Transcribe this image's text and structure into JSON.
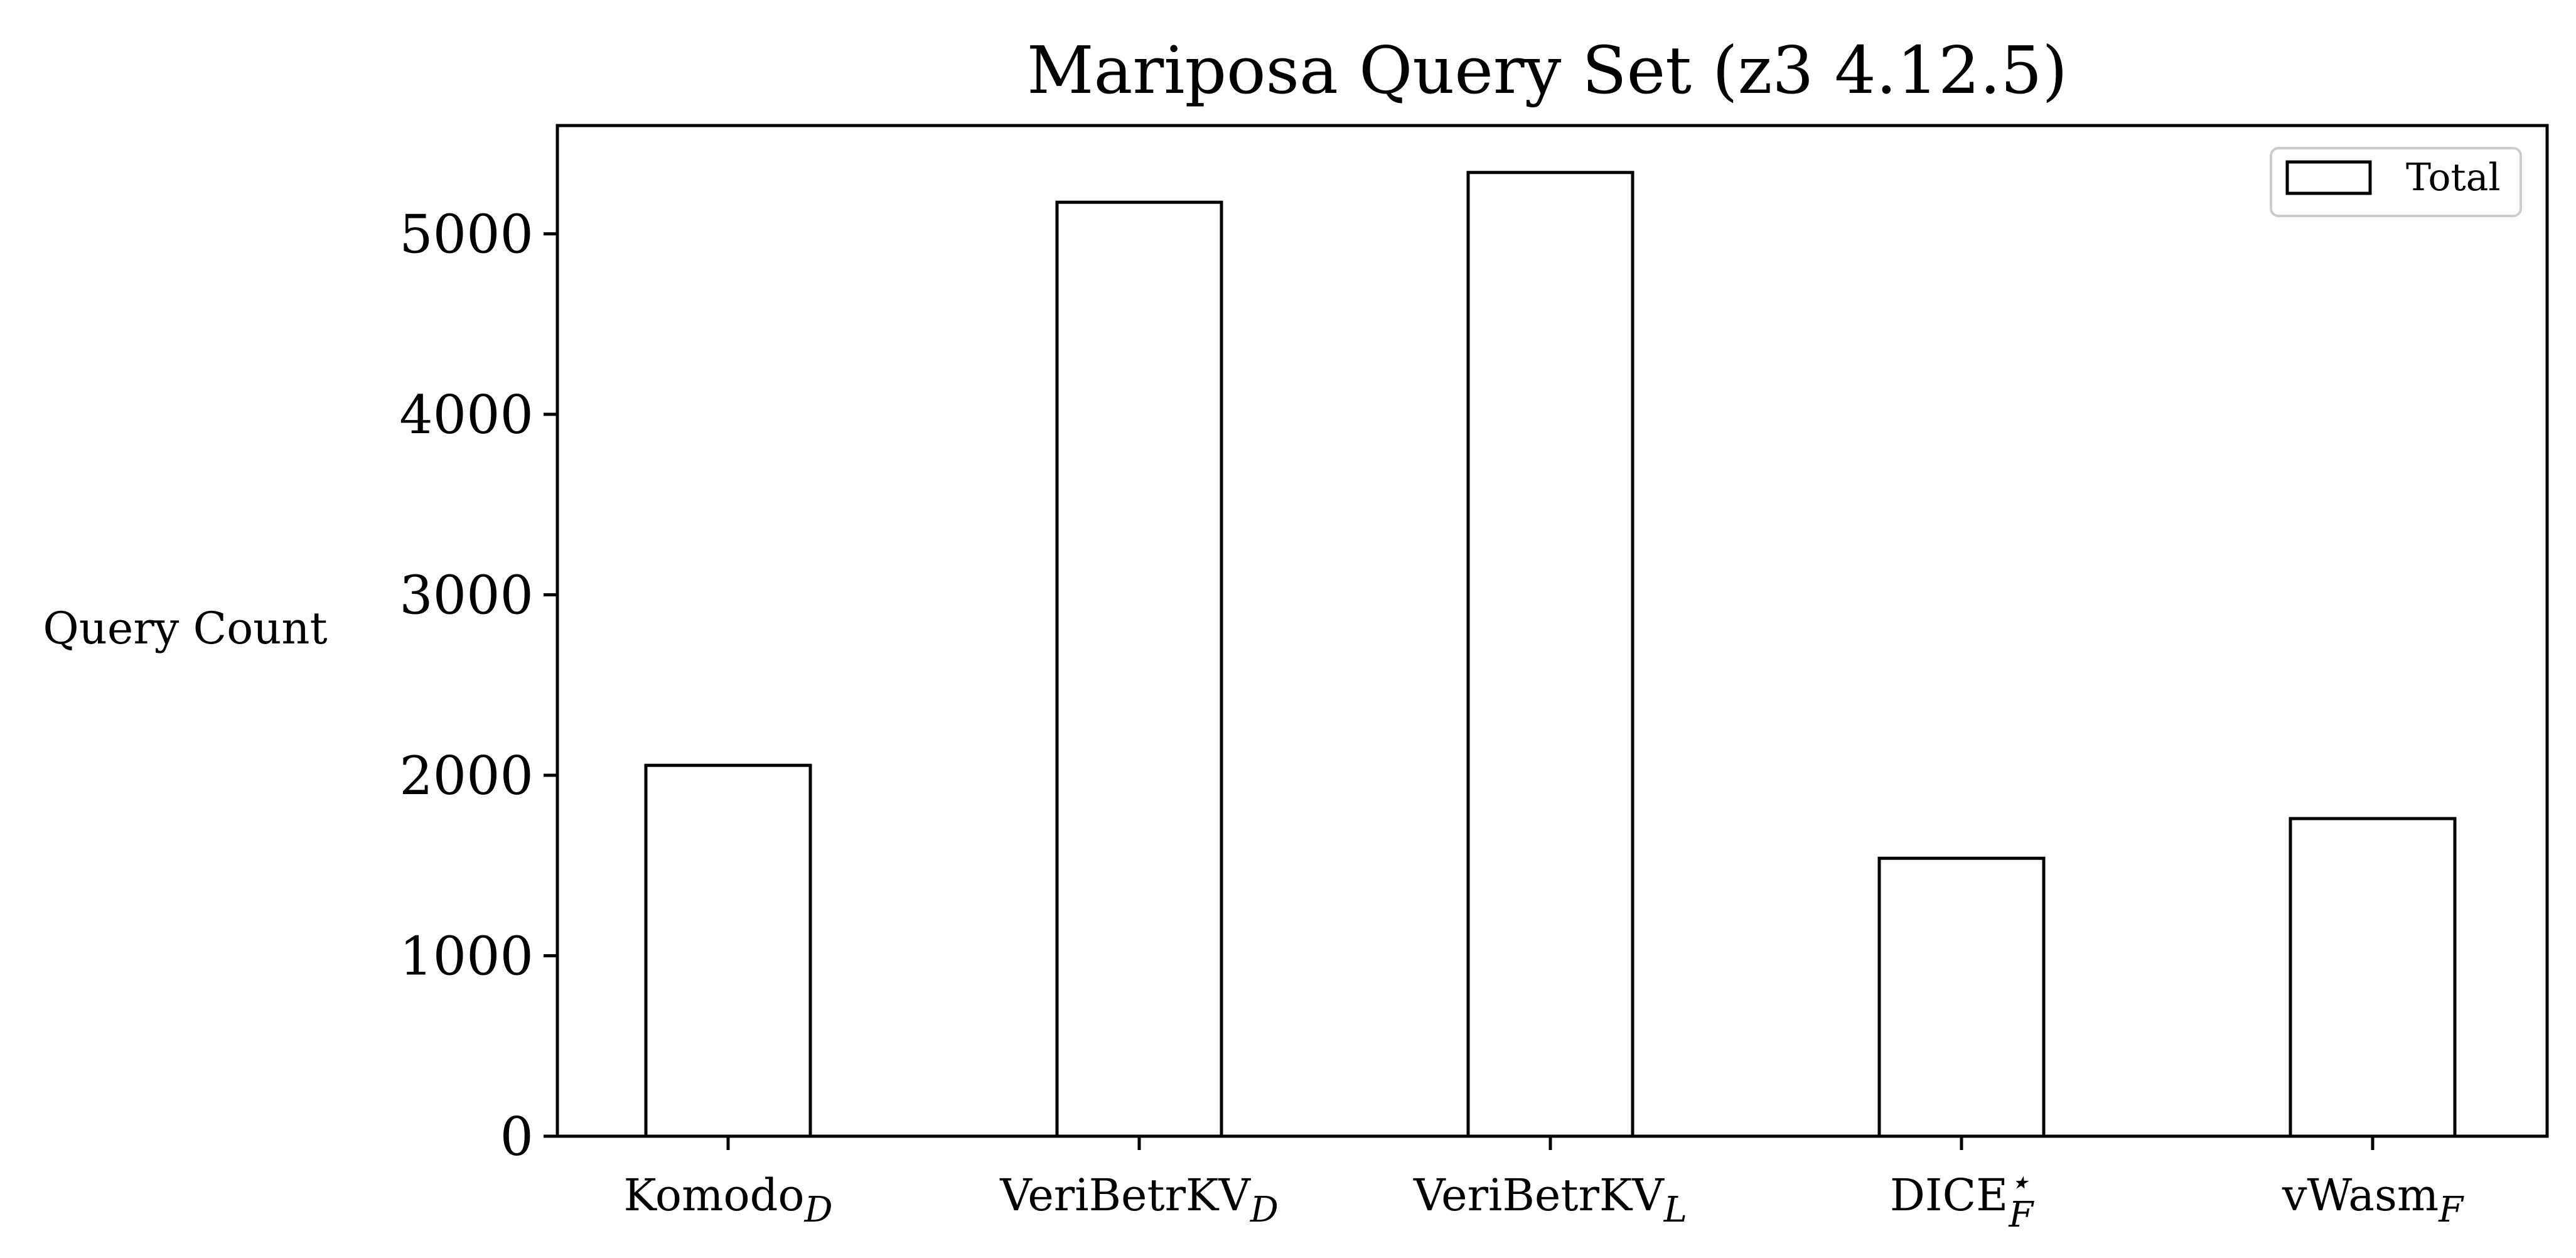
{
  "chart_data": {
    "type": "bar",
    "title": "Mariposa Query Set (z3 4.12.5)",
    "xlabel": "",
    "ylabel": "Query Count",
    "ylim": [
      0,
      5600
    ],
    "yticks": [
      0,
      1000,
      2000,
      3000,
      4000,
      5000
    ],
    "categories": [
      {
        "base": "Komodo",
        "sub": "D",
        "sup": ""
      },
      {
        "base": "VeriBetrKV",
        "sub": "D",
        "sup": ""
      },
      {
        "base": "VeriBetrKV",
        "sub": "L",
        "sup": ""
      },
      {
        "base": "DICE",
        "sub": "F",
        "sup": "⋆"
      },
      {
        "base": "vWasm",
        "sub": "F",
        "sup": ""
      }
    ],
    "series": [
      {
        "name": "Total",
        "values": [
          2055,
          5175,
          5340,
          1540,
          1760
        ],
        "fill": "#ffffff",
        "edge": "#000000"
      }
    ],
    "legend": {
      "position": "top-right"
    },
    "grid": false
  }
}
